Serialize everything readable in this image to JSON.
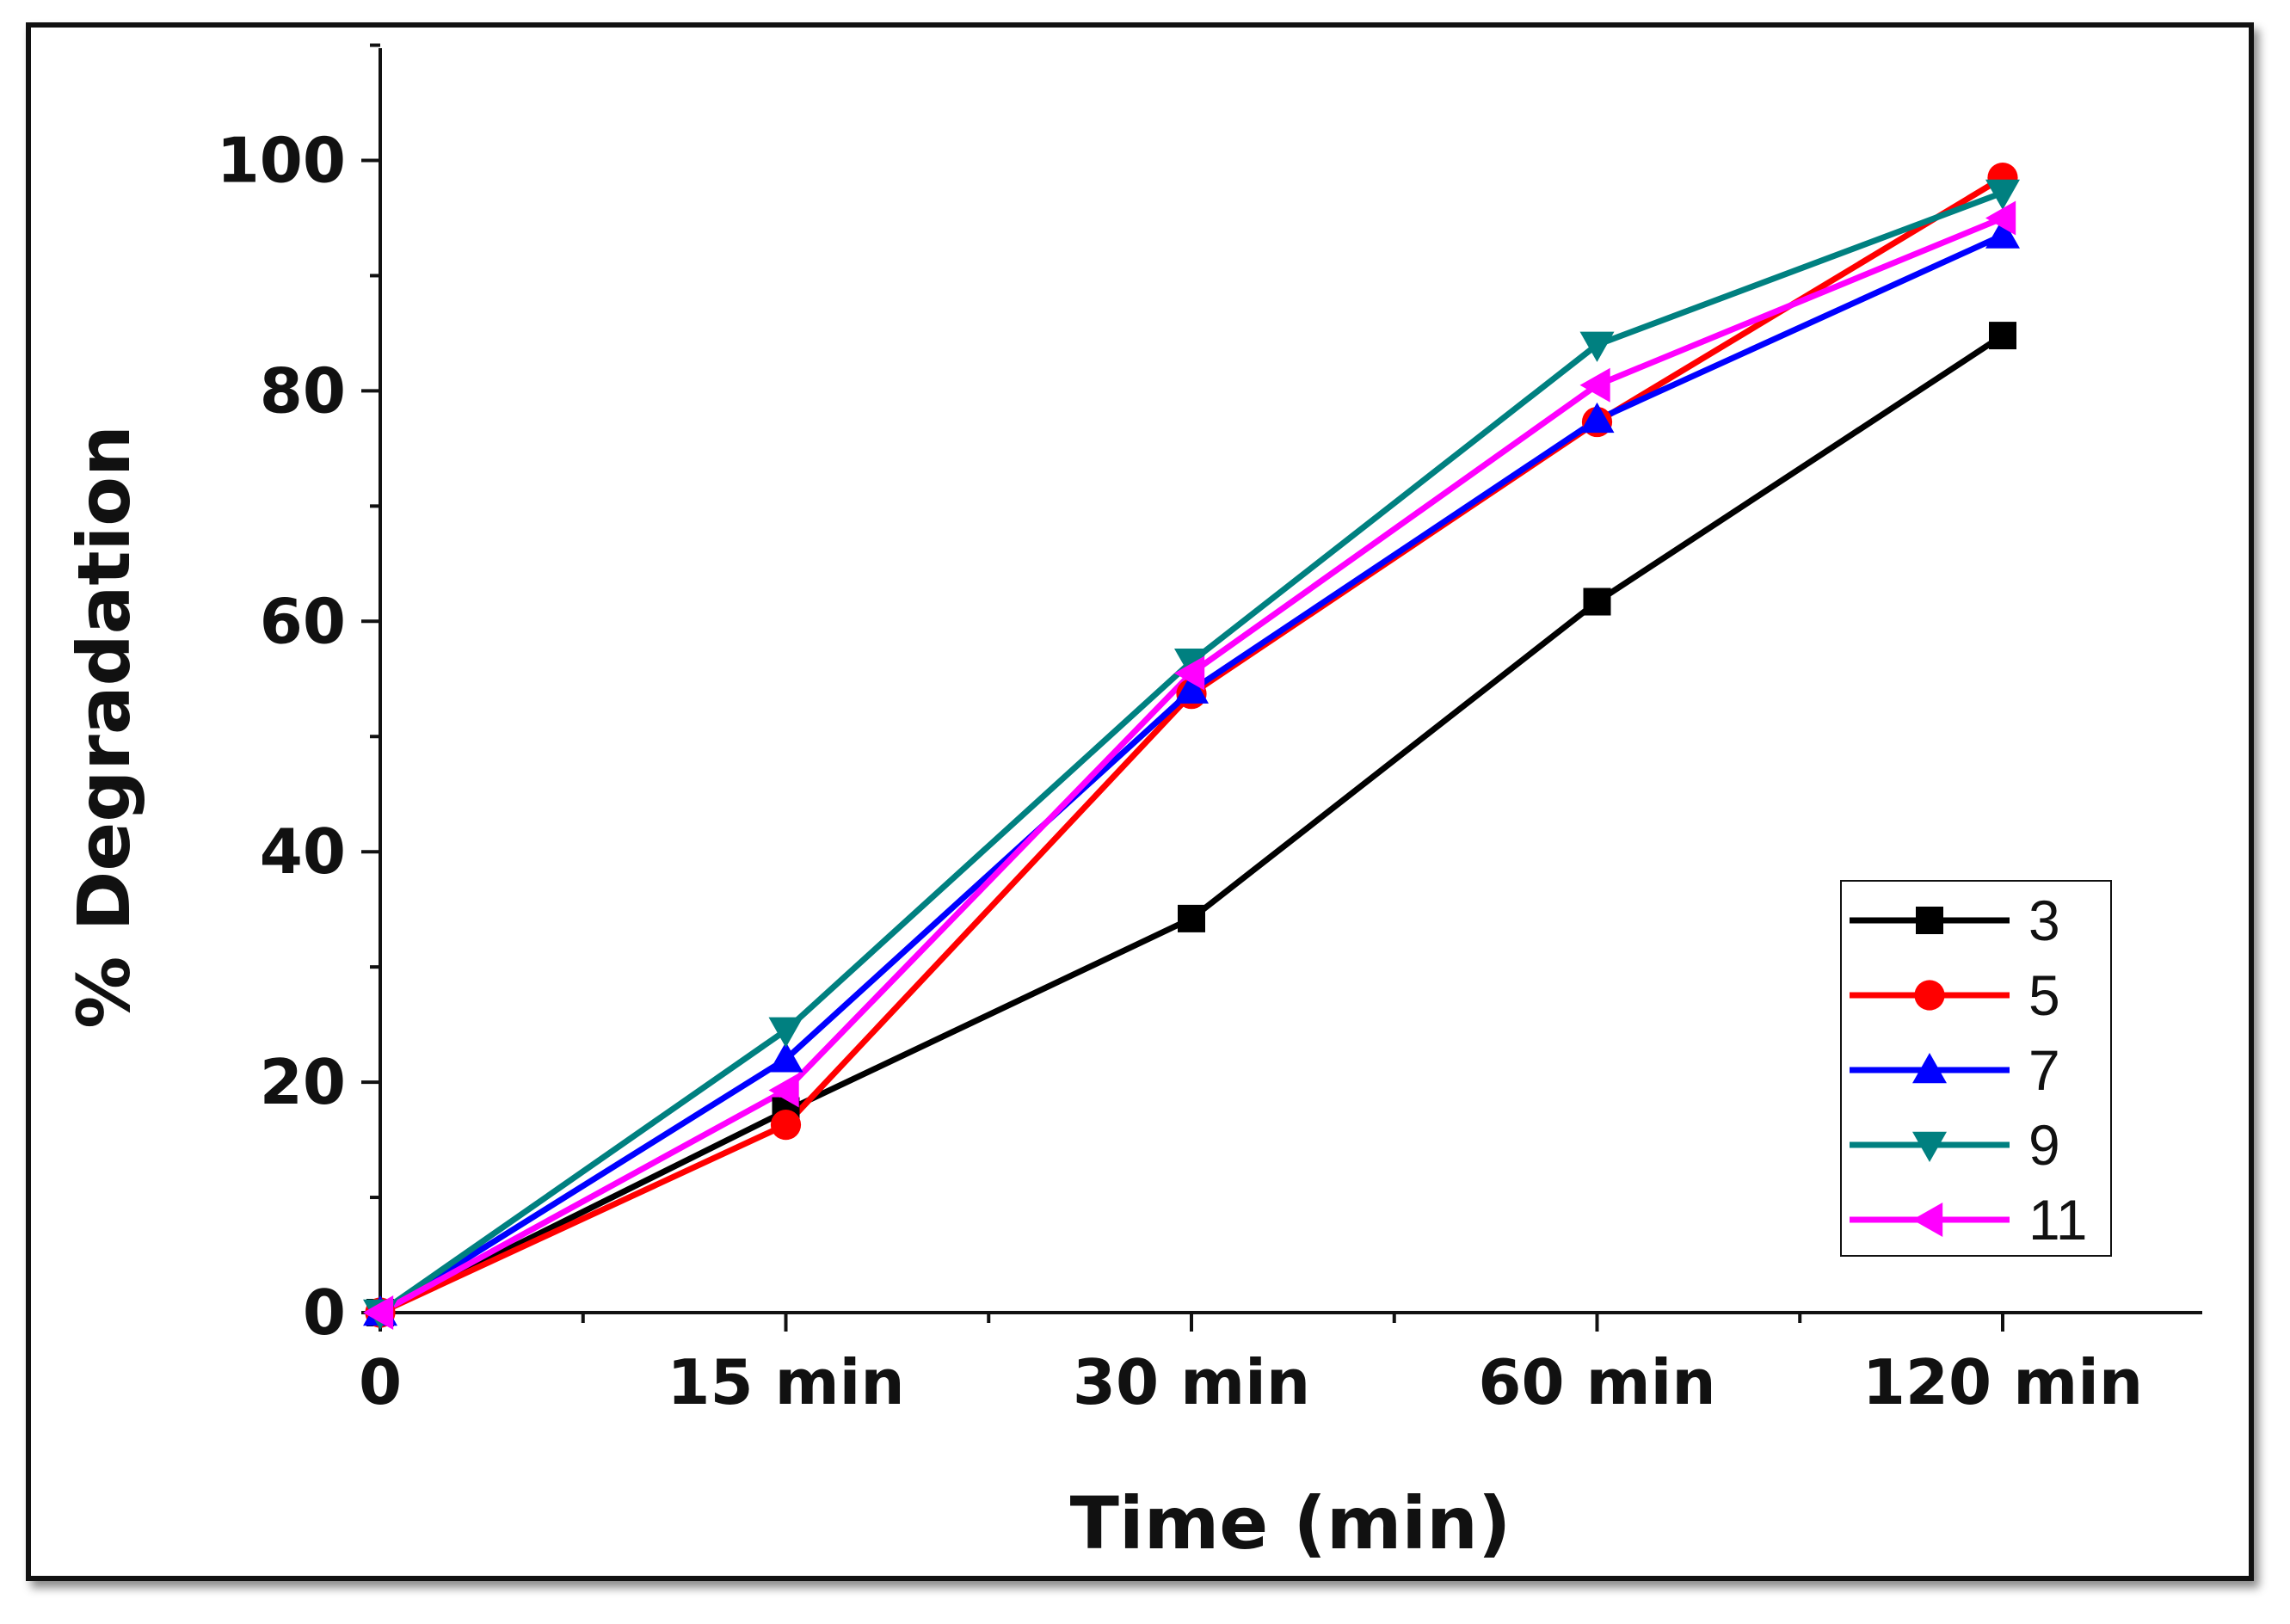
{
  "chart_data": {
    "type": "line",
    "title": "",
    "xlabel": "Time (min)",
    "ylabel": "% Degradation",
    "categories": [
      "0",
      "15 min",
      "30 min",
      "60 min",
      "120 min"
    ],
    "ylim": [
      0,
      110
    ],
    "yticks": [
      0,
      20,
      40,
      60,
      80,
      100
    ],
    "grid": false,
    "legend_position": "lower-right",
    "series": [
      {
        "name": "3",
        "color": "#000000",
        "marker": "square",
        "values": [
          0,
          17.5,
          34.2,
          61.7,
          84.8
        ]
      },
      {
        "name": "5",
        "color": "#ff0000",
        "marker": "circle",
        "values": [
          0,
          16.3,
          53.7,
          77.3,
          98.5
        ]
      },
      {
        "name": "7",
        "color": "#0000ff",
        "marker": "triangle-up",
        "values": [
          0,
          22.0,
          54.0,
          77.5,
          93.5
        ]
      },
      {
        "name": "9",
        "color": "#008080",
        "marker": "triangle-down",
        "values": [
          0,
          24.5,
          56.5,
          84.0,
          97.2
        ]
      },
      {
        "name": "11",
        "color": "#ff00ff",
        "marker": "triangle-left",
        "values": [
          0,
          19.3,
          55.5,
          80.5,
          95.0
        ]
      }
    ]
  }
}
